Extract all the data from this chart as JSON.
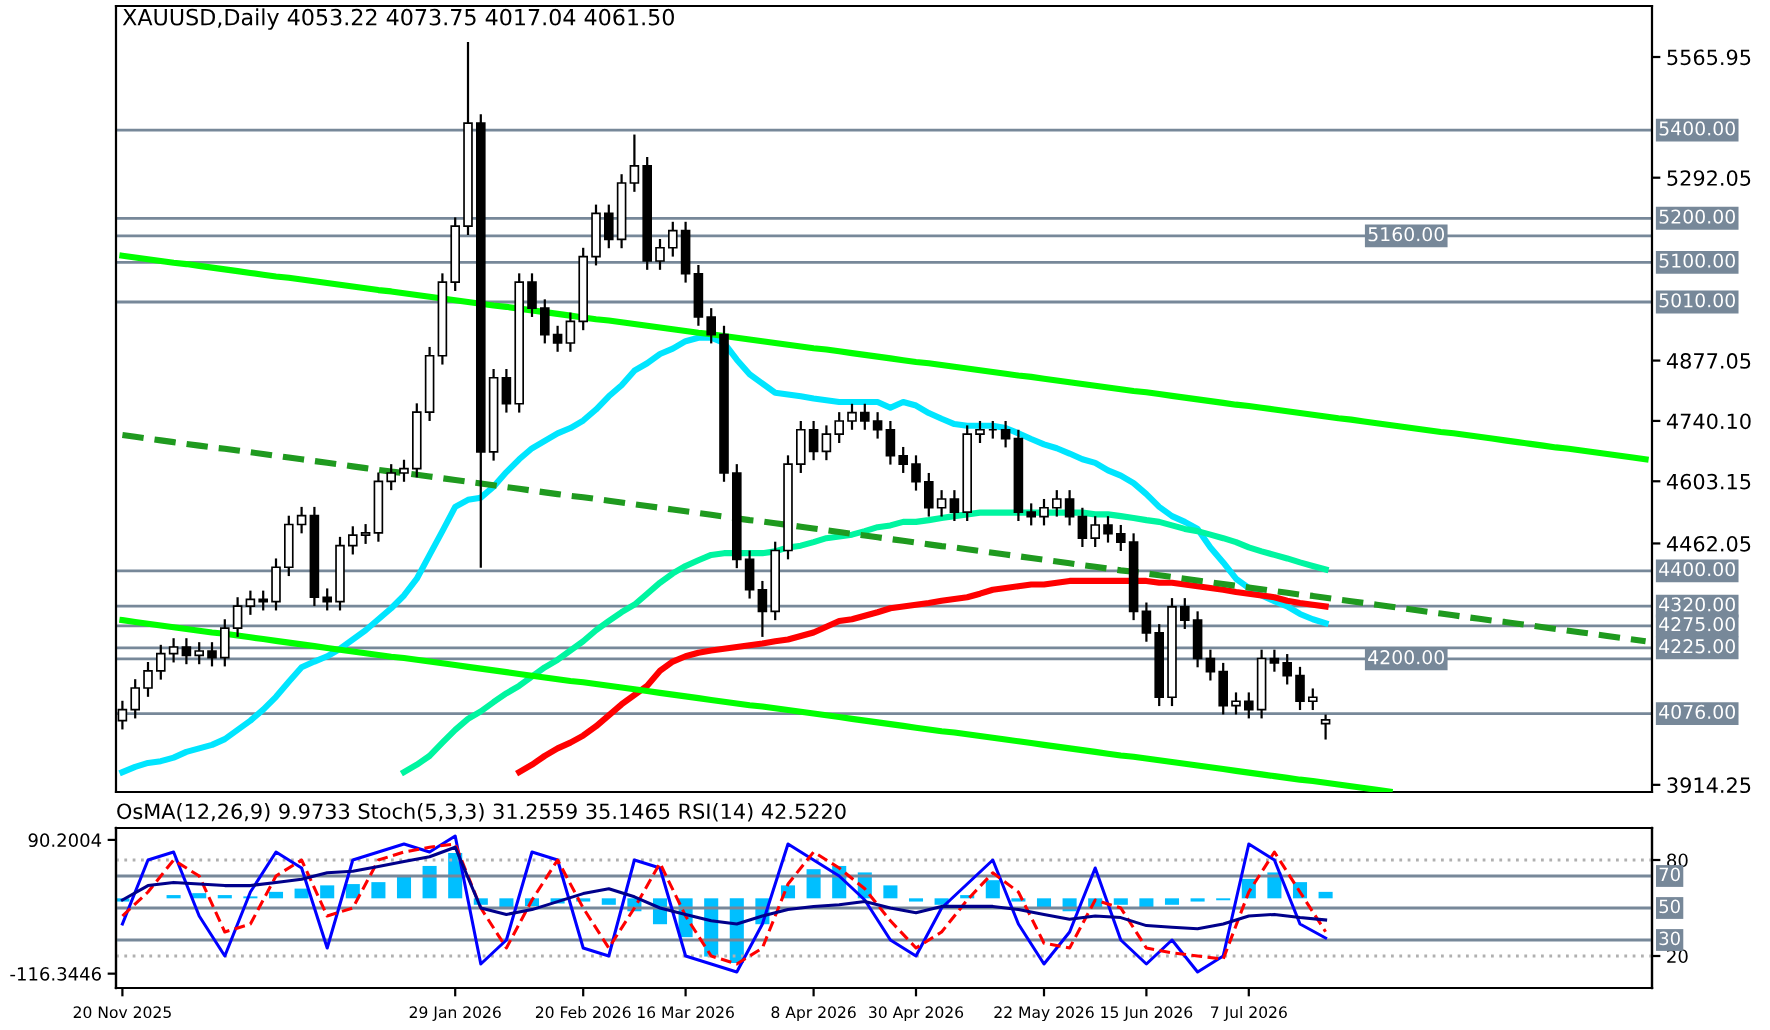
{
  "chart_data": [
    {
      "type": "candlestick",
      "title": "XAUUSD,Daily 4053.22 4073.75 4017.04 4061.50",
      "categories": [
        null,
        null,
        null,
        null,
        null,
        null,
        null,
        null,
        null,
        null,
        null,
        null,
        null,
        null,
        null,
        null,
        null,
        null,
        null,
        null,
        null,
        null,
        null,
        null,
        null,
        null,
        null,
        null,
        null,
        null,
        null,
        null,
        null,
        null,
        null,
        null,
        null,
        null,
        null,
        null,
        null,
        null,
        null,
        null,
        null,
        null,
        null,
        null,
        null,
        null,
        null,
        null,
        null,
        null,
        null,
        null,
        null,
        null,
        null,
        null,
        null,
        null,
        null,
        null,
        null,
        null,
        null,
        null,
        null,
        null,
        null,
        null,
        null,
        null,
        null,
        null,
        null,
        null,
        null,
        null,
        null,
        null,
        null,
        null,
        null,
        null,
        null,
        null,
        null,
        null,
        null,
        null,
        null,
        null,
        null,
        null,
        null,
        null,
        null,
        null,
        null,
        null,
        null,
        null,
        null,
        null,
        null,
        null,
        null,
        null,
        null,
        null,
        null,
        null,
        null,
        null,
        null,
        null,
        null,
        null
      ],
      "ohlc": [
        [
          4060,
          4105,
          4040,
          4085
        ],
        [
          4085,
          4154,
          4065,
          4134
        ],
        [
          4134,
          4193,
          4114,
          4173
        ],
        [
          4173,
          4232,
          4153,
          4212
        ],
        [
          4212,
          4247,
          4192,
          4227
        ],
        [
          4227,
          4247,
          4188,
          4208
        ],
        [
          4208,
          4238,
          4188,
          4218
        ],
        [
          4218,
          4238,
          4183,
          4203
        ],
        [
          4203,
          4290,
          4183,
          4270
        ],
        [
          4270,
          4340,
          4250,
          4320
        ],
        [
          4320,
          4355,
          4300,
          4335
        ],
        [
          4335,
          4355,
          4310,
          4330
        ],
        [
          4330,
          4428,
          4310,
          4408
        ],
        [
          4408,
          4525,
          4388,
          4505
        ],
        [
          4505,
          4545,
          4485,
          4525
        ],
        [
          4525,
          4545,
          4320,
          4340
        ],
        [
          4340,
          4360,
          4310,
          4330
        ],
        [
          4330,
          4477,
          4310,
          4457
        ],
        [
          4457,
          4501,
          4437,
          4481
        ],
        [
          4481,
          4506,
          4461,
          4486
        ],
        [
          4486,
          4623,
          4466,
          4603
        ],
        [
          4603,
          4642,
          4583,
          4622
        ],
        [
          4622,
          4652,
          4602,
          4632
        ],
        [
          4632,
          4780,
          4612,
          4760
        ],
        [
          4760,
          4908,
          4740,
          4888
        ],
        [
          4888,
          5075,
          4868,
          5055
        ],
        [
          5055,
          5202,
          5035,
          5182
        ],
        [
          5182,
          5600,
          5162,
          5416
        ],
        [
          5416,
          5436,
          4407,
          4670
        ],
        [
          4670,
          4858,
          4650,
          4838
        ],
        [
          4838,
          4858,
          4759,
          4779
        ],
        [
          4779,
          5075,
          4759,
          5055
        ],
        [
          5055,
          5075,
          4976,
          4996
        ],
        [
          4996,
          5016,
          4916,
          4936
        ],
        [
          4936,
          4956,
          4897,
          4917
        ],
        [
          4917,
          4986,
          4897,
          4966
        ],
        [
          4966,
          5133,
          4946,
          5113
        ],
        [
          5113,
          5231,
          5093,
          5211
        ],
        [
          5211,
          5231,
          5132,
          5152
        ],
        [
          5152,
          5300,
          5132,
          5280
        ],
        [
          5280,
          5390,
          5260,
          5319
        ],
        [
          5319,
          5339,
          5083,
          5103
        ],
        [
          5103,
          5153,
          5083,
          5133
        ],
        [
          5133,
          5192,
          5113,
          5172
        ],
        [
          5172,
          5192,
          5054,
          5074
        ],
        [
          5074,
          5094,
          4956,
          4976
        ],
        [
          4976,
          4996,
          4916,
          4936
        ],
        [
          4936,
          4956,
          4602,
          4622
        ],
        [
          4622,
          4642,
          4406,
          4426
        ],
        [
          4426,
          4446,
          4337,
          4357
        ],
        [
          4357,
          4377,
          4250,
          4308
        ],
        [
          4308,
          4466,
          4288,
          4446
        ],
        [
          4446,
          4662,
          4426,
          4642
        ],
        [
          4642,
          4740,
          4622,
          4720
        ],
        [
          4720,
          4740,
          4651,
          4671
        ],
        [
          4671,
          4730,
          4651,
          4710
        ],
        [
          4710,
          4760,
          4690,
          4740
        ],
        [
          4740,
          4779,
          4720,
          4759
        ],
        [
          4759,
          4779,
          4720,
          4740
        ],
        [
          4740,
          4760,
          4700,
          4720
        ],
        [
          4720,
          4740,
          4641,
          4661
        ],
        [
          4661,
          4681,
          4622,
          4642
        ],
        [
          4642,
          4662,
          4582,
          4602
        ],
        [
          4602,
          4622,
          4523,
          4543
        ],
        [
          4543,
          4583,
          4523,
          4563
        ],
        [
          4563,
          4583,
          4513,
          4533
        ],
        [
          4533,
          4730,
          4513,
          4710
        ],
        [
          4710,
          4740,
          4690,
          4720
        ],
        [
          4720,
          4740,
          4700,
          4720
        ],
        [
          4720,
          4740,
          4680,
          4700
        ],
        [
          4700,
          4720,
          4513,
          4533
        ],
        [
          4533,
          4553,
          4503,
          4523
        ],
        [
          4523,
          4563,
          4503,
          4543
        ],
        [
          4543,
          4583,
          4523,
          4563
        ],
        [
          4563,
          4583,
          4503,
          4523
        ],
        [
          4523,
          4543,
          4454,
          4474
        ],
        [
          4474,
          4524,
          4454,
          4504
        ],
        [
          4504,
          4524,
          4464,
          4484
        ],
        [
          4484,
          4504,
          4445,
          4465
        ],
        [
          4465,
          4485,
          4288,
          4308
        ],
        [
          4308,
          4328,
          4239,
          4259
        ],
        [
          4259,
          4279,
          4093,
          4113
        ],
        [
          4113,
          4338,
          4093,
          4318
        ],
        [
          4318,
          4338,
          4268,
          4288
        ],
        [
          4288,
          4308,
          4181,
          4201
        ],
        [
          4201,
          4221,
          4151,
          4171
        ],
        [
          4171,
          4191,
          4074,
          4094
        ],
        [
          4094,
          4124,
          4074,
          4104
        ],
        [
          4104,
          4124,
          4065,
          4085
        ],
        [
          4085,
          4221,
          4065,
          4201
        ],
        [
          4201,
          4221,
          4171,
          4191
        ],
        [
          4191,
          4211,
          4142,
          4162
        ],
        [
          4162,
          4182,
          4084,
          4104
        ],
        [
          4104,
          4133,
          4084,
          4113
        ],
        [
          4053.22,
          4073.75,
          4017.04,
          4061.5
        ],
        null,
        null,
        null,
        null,
        null,
        null,
        null,
        null,
        null,
        null,
        null,
        null,
        null,
        null,
        null,
        null,
        null,
        null,
        null,
        null,
        null,
        null,
        null,
        null,
        null
      ],
      "series": [
        {
          "type": "line",
          "color": "#00e5ff",
          "values": [
            3943,
            3955,
            3964,
            3968,
            3976,
            3989,
            3997,
            4005,
            4018,
            4039,
            4060,
            4085,
            4114,
            4148,
            4181,
            4194,
            4206,
            4223,
            4244,
            4265,
            4290,
            4315,
            4344,
            4382,
            4436,
            4490,
            4545,
            4561,
            4566,
            4591,
            4624,
            4653,
            4678,
            4695,
            4712,
            4724,
            4741,
            4766,
            4796,
            4821,
            4854,
            4871,
            4892,
            4904,
            4921,
            4929,
            4929,
            4917,
            4879,
            4846,
            4825,
            4804,
            4800,
            4796,
            4791,
            4787,
            4783,
            4783,
            4783,
            4783,
            4770,
            4783,
            4775,
            4758,
            4745,
            4733,
            4729,
            4729,
            4729,
            4724,
            4712,
            4699,
            4687,
            4678,
            4666,
            4653,
            4645,
            4628,
            4616,
            4599,
            4574,
            4545,
            4524,
            4511,
            4495,
            4453,
            4419,
            4382,
            4361,
            4344,
            4331,
            4319,
            4302,
            4290,
            4281,
            null,
            null,
            null,
            null,
            null,
            null,
            null,
            null,
            null,
            null,
            null,
            null,
            null,
            null,
            null,
            null,
            null,
            null,
            null,
            null,
            null,
            null,
            null,
            null,
            null
          ]
        },
        {
          "type": "line",
          "color": "#00f5a0",
          "values": [
            null,
            null,
            null,
            null,
            null,
            null,
            null,
            null,
            null,
            null,
            null,
            null,
            null,
            null,
            null,
            null,
            null,
            null,
            null,
            null,
            null,
            null,
            3943,
            3960,
            3980,
            4010,
            4039,
            4064,
            4081,
            4102,
            4122,
            4139,
            4160,
            4181,
            4198,
            4219,
            4240,
            4265,
            4286,
            4306,
            4323,
            4348,
            4373,
            4394,
            4411,
            4424,
            4436,
            4440,
            4440,
            4440,
            4440,
            4444,
            4453,
            4457,
            4465,
            4474,
            4478,
            4482,
            4490,
            4499,
            4503,
            4511,
            4511,
            4515,
            4520,
            4524,
            4528,
            4532,
            4532,
            4532,
            4532,
            4532,
            4532,
            4532,
            4532,
            4532,
            4528,
            4528,
            4524,
            4520,
            4515,
            4511,
            4503,
            4495,
            4490,
            4482,
            4474,
            4465,
            4453,
            4444,
            4436,
            4428,
            4419,
            4411,
            4403,
            null,
            null,
            null,
            null,
            null,
            null,
            null,
            null,
            null,
            null,
            null,
            null,
            null,
            null,
            null,
            null,
            null,
            null,
            null,
            null,
            null,
            null,
            null,
            null,
            null
          ]
        },
        {
          "type": "line",
          "color": "#ff0000",
          "values": [
            null,
            null,
            null,
            null,
            null,
            null,
            null,
            null,
            null,
            null,
            null,
            null,
            null,
            null,
            null,
            null,
            null,
            null,
            null,
            null,
            null,
            null,
            null,
            null,
            null,
            null,
            null,
            null,
            null,
            null,
            null,
            3943,
            3960,
            3980,
            3997,
            4010,
            4026,
            4047,
            4072,
            4097,
            4118,
            4139,
            4173,
            4194,
            4206,
            4214,
            4219,
            4223,
            4227,
            4231,
            4235,
            4240,
            4244,
            4252,
            4260,
            4273,
            4286,
            4290,
            4298,
            4306,
            4315,
            4319,
            4323,
            4327,
            4332,
            4336,
            4340,
            4348,
            4357,
            4361,
            4365,
            4369,
            4369,
            4373,
            4377,
            4377,
            4377,
            4377,
            4377,
            4377,
            4377,
            4373,
            4373,
            4369,
            4365,
            4361,
            4357,
            4352,
            4348,
            4344,
            4340,
            4332,
            4327,
            4323,
            4319,
            null,
            null,
            null,
            null,
            null,
            null,
            null,
            null,
            null,
            null,
            null,
            null,
            null,
            null,
            null,
            null,
            null,
            null,
            null,
            null,
            null,
            null,
            null,
            null,
            null
          ]
        },
        {
          "type": "line",
          "color": "#00ff00",
          "values": [
            5115,
            5111,
            5107,
            5103,
            5099,
            5096,
            5092,
            5088,
            5084,
            5080,
            5076,
            5072,
            5068,
            5065,
            5061,
            5057,
            5053,
            5049,
            5045,
            5041,
            5037,
            5034,
            5030,
            5026,
            5022,
            5018,
            5014,
            5010,
            5006,
            5002,
            4999,
            4995,
            4991,
            4987,
            4983,
            4979,
            4975,
            4971,
            4968,
            4964,
            4960,
            4956,
            4952,
            4948,
            4944,
            4940,
            4937,
            4933,
            4929,
            4925,
            4921,
            4917,
            4913,
            4909,
            4905,
            4902,
            4898,
            4894,
            4890,
            4886,
            4882,
            4878,
            4874,
            4871,
            4867,
            4863,
            4859,
            4855,
            4851,
            4847,
            4843,
            4840,
            4836,
            4832,
            4828,
            4824,
            4820,
            4816,
            4812,
            4808,
            4805,
            4801,
            4797,
            4793,
            4789,
            4785,
            4781,
            4777,
            4774,
            4770,
            4766,
            4762,
            4758,
            4754,
            4750,
            4746,
            4743,
            4739,
            4735,
            4731,
            4727,
            4723,
            4719,
            4715,
            4712,
            4708,
            4704,
            4700,
            4696,
            4692,
            4688,
            4684,
            4680,
            4677,
            4673,
            4669,
            4665,
            4661,
            4657,
            4653
          ]
        },
        {
          "type": "line",
          "color": "#1f9a1f",
          "line_style": "dashed",
          "values": [
            4708,
            4704,
            4700,
            4696,
            4692,
            4688,
            4684,
            4680,
            4677,
            4673,
            4669,
            4665,
            4661,
            4657,
            4653,
            4649,
            4645,
            4641,
            4637,
            4633,
            4629,
            4625,
            4622,
            4618,
            4614,
            4610,
            4606,
            4602,
            4598,
            4594,
            4590,
            4586,
            4582,
            4578,
            4574,
            4570,
            4567,
            4563,
            4559,
            4555,
            4551,
            4547,
            4543,
            4539,
            4535,
            4531,
            4527,
            4523,
            4519,
            4515,
            4512,
            4508,
            4504,
            4500,
            4496,
            4492,
            4488,
            4484,
            4480,
            4476,
            4472,
            4468,
            4464,
            4460,
            4456,
            4453,
            4449,
            4445,
            4441,
            4437,
            4433,
            4429,
            4425,
            4421,
            4417,
            4413,
            4409,
            4405,
            4401,
            4398,
            4394,
            4390,
            4386,
            4382,
            4378,
            4374,
            4370,
            4366,
            4362,
            4358,
            4354,
            4350,
            4346,
            4343,
            4339,
            4335,
            4331,
            4327,
            4323,
            4319,
            4315,
            4311,
            4307,
            4303,
            4299,
            4295,
            4291,
            4287,
            4284,
            4280,
            4276,
            4272,
            4268,
            4264,
            4260,
            4256,
            4252,
            4248,
            4244,
            4240
          ]
        },
        {
          "type": "line",
          "color": "#00ff00",
          "values": [
            4288,
            4284,
            4280,
            4276,
            4272,
            4268,
            4264,
            4260,
            4257,
            4253,
            4249,
            4245,
            4241,
            4237,
            4233,
            4229,
            4225,
            4221,
            4217,
            4213,
            4209,
            4205,
            4202,
            4198,
            4194,
            4190,
            4186,
            4182,
            4178,
            4174,
            4170,
            4166,
            4162,
            4158,
            4154,
            4150,
            4147,
            4143,
            4139,
            4135,
            4131,
            4127,
            4123,
            4119,
            4115,
            4111,
            4107,
            4103,
            4099,
            4095,
            4092,
            4088,
            4084,
            4080,
            4076,
            4072,
            4068,
            4064,
            4060,
            4056,
            4052,
            4048,
            4044,
            4040,
            4036,
            4033,
            4029,
            4025,
            4021,
            4017,
            4013,
            4009,
            4005,
            4001,
            3997,
            3993,
            3989,
            3985,
            3981,
            3978,
            3974,
            3970,
            3966,
            3962,
            3958,
            3954,
            3950,
            3946,
            3942,
            3938,
            3934,
            3930,
            3926,
            3923,
            3919,
            3915,
            3911,
            3907,
            3903,
            3899,
            null,
            null,
            null,
            null,
            null,
            null,
            null,
            null,
            null,
            null,
            null,
            null,
            null,
            null,
            null,
            null,
            null,
            null,
            null,
            null
          ]
        }
      ],
      "ylim": [
        3898,
        5681.7
      ],
      "yticks": [
        3914.25,
        4462.05,
        4603.15,
        {
          "value": 4740.1,
          "label": "4740.10"
        },
        4877.05,
        5292.05,
        5565.95
      ],
      "ref_lines": [
        {
          "axis": "y",
          "value": 5400,
          "label": "5400.00",
          "color": "#778899"
        },
        {
          "axis": "y",
          "value": 5200,
          "label": "5200.00",
          "color": "#778899"
        },
        {
          "axis": "y",
          "value": 5160,
          "label": "5160.00",
          "color": "#778899"
        },
        {
          "axis": "y",
          "value": 5100,
          "label": "5100.00",
          "color": "#778899"
        },
        {
          "axis": "y",
          "value": 5010,
          "label": "5010.00",
          "color": "#778899"
        },
        {
          "axis": "y",
          "value": 4400,
          "label": "4400.00",
          "color": "#778899"
        },
        {
          "axis": "y",
          "value": 4320,
          "label": "4320.00",
          "color": "#778899"
        },
        {
          "axis": "y",
          "value": 4275,
          "label": "4275.00",
          "color": "#778899"
        },
        {
          "axis": "y",
          "value": 4225,
          "label": "4225.00",
          "color": "#778899"
        },
        {
          "axis": "y",
          "value": 4200,
          "label": "4200.00",
          "color": "#778899"
        },
        {
          "axis": "y",
          "value": 4076,
          "label": "4076.00",
          "color": "#778899"
        }
      ],
      "tick_labels": "y"
    },
    {
      "type": "line",
      "title": "OsMA(12,26,9) 9.9733 Stoch(5,3,3) 31.2559 35.1465 RSI(14) 42.5220",
      "categories": [
        "20 Nov 2025",
        null,
        null,
        null,
        null,
        null,
        null,
        null,
        null,
        null,
        null,
        null,
        null,
        "29 Jan 2026",
        null,
        null,
        null,
        null,
        "20 Feb 2026",
        null,
        null,
        null,
        "16 Mar 2026",
        null,
        null,
        null,
        null,
        "8 Apr 2026",
        null,
        null,
        null,
        "30 Apr 2026",
        null,
        null,
        null,
        null,
        "22 May 2026",
        null,
        null,
        null,
        "15 Jun 2026",
        null,
        null,
        null,
        "7 Jul 2026",
        null,
        null,
        null,
        null,
        null,
        null,
        null,
        null,
        null,
        null,
        null,
        null,
        null,
        null,
        null
      ],
      "series": [
        {
          "type": "bar",
          "color": "#00bfff",
          "values": [
            -5,
            0,
            5,
            8,
            5,
            3,
            10,
            15,
            20,
            22,
            25,
            35,
            50,
            70,
            -10,
            -15,
            -12,
            -8,
            -5,
            -10,
            -20,
            -40,
            -60,
            -90,
            -100,
            -40,
            20,
            45,
            50,
            40,
            20,
            -5,
            -10,
            5,
            28,
            -5,
            -15,
            -20,
            -15,
            -10,
            -15,
            -10,
            -5,
            -3,
            30,
            40,
            25,
            9.9733,
            null,
            null,
            null,
            null,
            null,
            null,
            null,
            null,
            null,
            null,
            null,
            null
          ]
        },
        {
          "type": "line",
          "axis": "y2",
          "color": "#0000ff",
          "values": [
            40,
            80,
            85,
            45,
            20,
            60,
            85,
            75,
            25,
            80,
            85,
            90,
            85,
            95,
            15,
            30,
            85,
            80,
            25,
            20,
            80,
            75,
            20,
            15,
            10,
            40,
            90,
            80,
            70,
            55,
            30,
            20,
            50,
            65,
            80,
            40,
            15,
            35,
            75,
            30,
            15,
            30,
            10,
            20,
            90,
            80,
            40,
            31.2559,
            null,
            null,
            null,
            null,
            null,
            null,
            null,
            null,
            null,
            null,
            null,
            null
          ]
        },
        {
          "type": "line",
          "axis": "y2",
          "color": "#ff0000",
          "line_style": "dashed",
          "values": [
            45,
            60,
            80,
            70,
            35,
            40,
            70,
            80,
            45,
            50,
            80,
            85,
            88,
            90,
            50,
            25,
            55,
            80,
            50,
            25,
            50,
            78,
            45,
            20,
            15,
            25,
            65,
            85,
            75,
            62,
            42,
            25,
            35,
            55,
            72,
            60,
            28,
            25,
            55,
            50,
            25,
            22,
            20,
            18,
            60,
            85,
            60,
            35.1465,
            null,
            null,
            null,
            null,
            null,
            null,
            null,
            null,
            null,
            null,
            null,
            null
          ]
        },
        {
          "type": "line",
          "axis": "y2",
          "color": "#00008b",
          "values": [
            55,
            64,
            66,
            65,
            64,
            64,
            66,
            68,
            72,
            73,
            76,
            79,
            82,
            88,
            50,
            46,
            49,
            54,
            59,
            62,
            57,
            50,
            46,
            42,
            40,
            45,
            49,
            51,
            52,
            54,
            50,
            47,
            51,
            51,
            51,
            49,
            46,
            43,
            45,
            44,
            39,
            38,
            37,
            40,
            45,
            46,
            44,
            42.522,
            null,
            null,
            null,
            null,
            null,
            null,
            null,
            null,
            null,
            null,
            null,
            null
          ]
        }
      ],
      "ylim": [
        -138.5,
        108.6
      ],
      "yticks": [
        90.2004,
        -116.3446
      ],
      "y2lim": [
        0,
        100
      ],
      "y2ticks": [
        20,
        80
      ],
      "ref_lines": [
        {
          "axis": "y2",
          "value": 80,
          "label": null,
          "color": "#b0b0b0",
          "line_style": "dotted"
        },
        {
          "axis": "y2",
          "value": 70,
          "label": "70",
          "color": "#778899"
        },
        {
          "axis": "y2",
          "value": 50,
          "label": "50",
          "color": "#778899"
        },
        {
          "axis": "y2",
          "value": 30,
          "label": "30",
          "color": "#778899"
        },
        {
          "axis": "y2",
          "value": 20,
          "label": null,
          "color": "#b0b0b0",
          "line_style": "dotted"
        }
      ]
    }
  ]
}
